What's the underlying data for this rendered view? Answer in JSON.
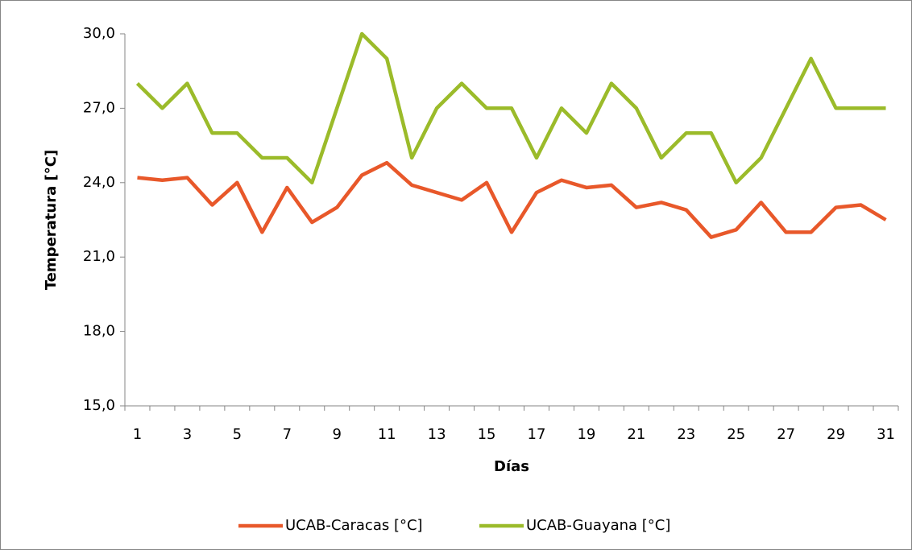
{
  "chart_data": {
    "type": "line",
    "y_label": "Temperatura [°C]",
    "x_label": "Días",
    "categories": [
      "1",
      null,
      "3",
      null,
      "5",
      null,
      "7",
      null,
      "9",
      null,
      "11",
      null,
      "13",
      null,
      "15",
      null,
      "17",
      null,
      "19",
      null,
      "21",
      null,
      "23",
      null,
      "25",
      null,
      "27",
      null,
      "29",
      null,
      "31"
    ],
    "series": [
      {
        "name": "UCAB-Caracas [°C]",
        "color": "#e8582a",
        "values": [
          24.2,
          24.1,
          24.2,
          23.1,
          24.0,
          22.0,
          23.8,
          22.4,
          23.0,
          24.3,
          24.8,
          23.9,
          23.6,
          23.3,
          24.0,
          22.0,
          23.6,
          24.1,
          23.8,
          23.9,
          23.0,
          23.2,
          22.9,
          21.8,
          22.1,
          23.2,
          22.0,
          22.0,
          23.0,
          23.1,
          22.5
        ]
      },
      {
        "name": "UCAB-Guayana [°C]",
        "color": "#9bbb2a",
        "values": [
          28,
          27,
          28,
          26,
          26,
          25,
          25,
          24,
          27,
          30,
          29,
          25,
          27,
          28,
          27,
          27,
          25,
          27,
          26,
          28,
          27,
          25,
          26,
          26,
          24,
          25,
          27,
          29,
          27,
          27,
          27
        ]
      }
    ],
    "ylim": [
      15,
      30
    ],
    "yticks": [
      {
        "value": 15,
        "label": "15,0"
      },
      {
        "value": 18,
        "label": "18,0"
      },
      {
        "value": 21,
        "label": "21,0"
      },
      {
        "value": 24,
        "label": "24,0"
      },
      {
        "value": 27,
        "label": "27,0"
      },
      {
        "value": 30,
        "label": "30,0"
      }
    ],
    "legend": "bottom"
  }
}
